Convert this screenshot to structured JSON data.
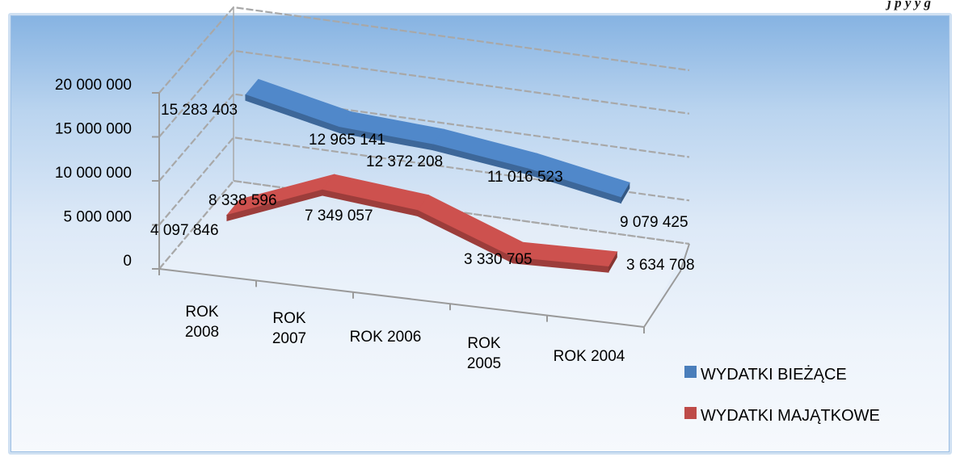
{
  "page": {
    "caption": "j                  p          y         y g"
  },
  "colors": {
    "series_1": "#4a7ebb",
    "series_2": "#be4b48",
    "gridline": "#a8a8a8",
    "axis": "#9a9a9a"
  },
  "chart_data": {
    "type": "line",
    "style": "3d-ribbon",
    "title": "",
    "xlabel": "",
    "ylabel": "",
    "categories": [
      "ROK 2008",
      "ROK 2007",
      "ROK 2006",
      "ROK 2005",
      "ROK 2004"
    ],
    "category_label_lines": [
      [
        "ROK",
        "2008"
      ],
      [
        "ROK",
        "2007"
      ],
      [
        "ROK 2006"
      ],
      [
        "ROK",
        "2005"
      ],
      [
        "ROK 2004"
      ]
    ],
    "ylim": [
      0,
      20000000
    ],
    "yticks": [
      0,
      5000000,
      10000000,
      15000000,
      20000000
    ],
    "ytick_labels": [
      "0",
      "5 000 000",
      "10 000 000",
      "15 000 000",
      "20 000 000"
    ],
    "grid": true,
    "legend_position": "bottom-right",
    "series": [
      {
        "name": "WYDATKI BIEŻĄCE",
        "values": [
          15283403,
          12965141,
          12372208,
          11016523,
          9079425
        ],
        "labels": [
          "15 283 403",
          "12 965 141",
          "12 372 208",
          "11 016 523",
          "9 079 425"
        ]
      },
      {
        "name": "WYDATKI MAJĄTKOWE",
        "values": [
          4097846,
          8338596,
          7349057,
          3330705,
          3634708
        ],
        "labels": [
          "4 097 846",
          "8 338 596",
          "7 349 057",
          "3 330 705",
          "3 634 708"
        ]
      }
    ]
  }
}
